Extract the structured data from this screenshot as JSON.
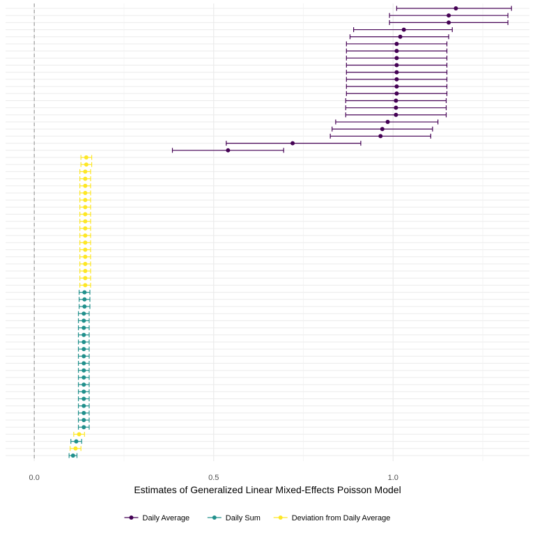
{
  "chart_data": {
    "type": "scatter",
    "subtype": "forest plot with horizontal error bars",
    "title": "",
    "xlabel": "Estimates of Generalized Linear Mixed-Effects Poisson Model",
    "ylabel": "",
    "xlim": [
      -0.08,
      1.38
    ],
    "x_ticks": [
      0.0,
      0.5,
      1.0
    ],
    "x_tick_labels": [
      "0.0",
      "0.5",
      "1.0"
    ],
    "reference_line_x": 0,
    "grid": true,
    "legend_position": "bottom",
    "colors": {
      "Daily Average": "#440154",
      "Daily Sum": "#21908C",
      "Deviation from Daily Average": "#FDE725"
    },
    "legend": [
      "Daily Average",
      "Daily Sum",
      "Deviation from Daily Average"
    ],
    "points": [
      {
        "series": "Daily Average",
        "estimate": 1.175,
        "lower": 1.01,
        "upper": 1.33
      },
      {
        "series": "Daily Average",
        "estimate": 1.155,
        "lower": 0.99,
        "upper": 1.32
      },
      {
        "series": "Daily Average",
        "estimate": 1.155,
        "lower": 0.99,
        "upper": 1.32
      },
      {
        "series": "Daily Average",
        "estimate": 1.03,
        "lower": 0.89,
        "upper": 1.165
      },
      {
        "series": "Daily Average",
        "estimate": 1.02,
        "lower": 0.88,
        "upper": 1.155
      },
      {
        "series": "Daily Average",
        "estimate": 1.01,
        "lower": 0.87,
        "upper": 1.15
      },
      {
        "series": "Daily Average",
        "estimate": 1.01,
        "lower": 0.87,
        "upper": 1.15
      },
      {
        "series": "Daily Average",
        "estimate": 1.01,
        "lower": 0.87,
        "upper": 1.15
      },
      {
        "series": "Daily Average",
        "estimate": 1.01,
        "lower": 0.87,
        "upper": 1.15
      },
      {
        "series": "Daily Average",
        "estimate": 1.01,
        "lower": 0.87,
        "upper": 1.15
      },
      {
        "series": "Daily Average",
        "estimate": 1.01,
        "lower": 0.87,
        "upper": 1.15
      },
      {
        "series": "Daily Average",
        "estimate": 1.01,
        "lower": 0.87,
        "upper": 1.15
      },
      {
        "series": "Daily Average",
        "estimate": 1.01,
        "lower": 0.87,
        "upper": 1.15
      },
      {
        "series": "Daily Average",
        "estimate": 1.008,
        "lower": 0.868,
        "upper": 1.148
      },
      {
        "series": "Daily Average",
        "estimate": 1.008,
        "lower": 0.868,
        "upper": 1.148
      },
      {
        "series": "Daily Average",
        "estimate": 1.008,
        "lower": 0.868,
        "upper": 1.148
      },
      {
        "series": "Daily Average",
        "estimate": 0.985,
        "lower": 0.84,
        "upper": 1.125
      },
      {
        "series": "Daily Average",
        "estimate": 0.97,
        "lower": 0.83,
        "upper": 1.11
      },
      {
        "series": "Daily Average",
        "estimate": 0.965,
        "lower": 0.825,
        "upper": 1.105
      },
      {
        "series": "Daily Average",
        "estimate": 0.72,
        "lower": 0.535,
        "upper": 0.91
      },
      {
        "series": "Daily Average",
        "estimate": 0.54,
        "lower": 0.385,
        "upper": 0.695
      },
      {
        "series": "Deviation from Daily Average",
        "estimate": 0.145,
        "lower": 0.13,
        "upper": 0.16
      },
      {
        "series": "Deviation from Daily Average",
        "estimate": 0.145,
        "lower": 0.13,
        "upper": 0.16
      },
      {
        "series": "Deviation from Daily Average",
        "estimate": 0.142,
        "lower": 0.127,
        "upper": 0.157
      },
      {
        "series": "Deviation from Daily Average",
        "estimate": 0.142,
        "lower": 0.127,
        "upper": 0.157
      },
      {
        "series": "Deviation from Daily Average",
        "estimate": 0.142,
        "lower": 0.127,
        "upper": 0.157
      },
      {
        "series": "Deviation from Daily Average",
        "estimate": 0.142,
        "lower": 0.127,
        "upper": 0.157
      },
      {
        "series": "Deviation from Daily Average",
        "estimate": 0.142,
        "lower": 0.127,
        "upper": 0.157
      },
      {
        "series": "Deviation from Daily Average",
        "estimate": 0.142,
        "lower": 0.127,
        "upper": 0.157
      },
      {
        "series": "Deviation from Daily Average",
        "estimate": 0.142,
        "lower": 0.127,
        "upper": 0.157
      },
      {
        "series": "Deviation from Daily Average",
        "estimate": 0.142,
        "lower": 0.127,
        "upper": 0.157
      },
      {
        "series": "Deviation from Daily Average",
        "estimate": 0.142,
        "lower": 0.127,
        "upper": 0.157
      },
      {
        "series": "Deviation from Daily Average",
        "estimate": 0.142,
        "lower": 0.127,
        "upper": 0.157
      },
      {
        "series": "Deviation from Daily Average",
        "estimate": 0.142,
        "lower": 0.127,
        "upper": 0.157
      },
      {
        "series": "Deviation from Daily Average",
        "estimate": 0.142,
        "lower": 0.127,
        "upper": 0.157
      },
      {
        "series": "Deviation from Daily Average",
        "estimate": 0.142,
        "lower": 0.127,
        "upper": 0.157
      },
      {
        "series": "Deviation from Daily Average",
        "estimate": 0.142,
        "lower": 0.127,
        "upper": 0.157
      },
      {
        "series": "Deviation from Daily Average",
        "estimate": 0.142,
        "lower": 0.127,
        "upper": 0.157
      },
      {
        "series": "Deviation from Daily Average",
        "estimate": 0.142,
        "lower": 0.127,
        "upper": 0.157
      },
      {
        "series": "Deviation from Daily Average",
        "estimate": 0.142,
        "lower": 0.127,
        "upper": 0.157
      },
      {
        "series": "Daily Sum",
        "estimate": 0.14,
        "lower": 0.125,
        "upper": 0.155
      },
      {
        "series": "Daily Sum",
        "estimate": 0.14,
        "lower": 0.125,
        "upper": 0.155
      },
      {
        "series": "Daily Sum",
        "estimate": 0.14,
        "lower": 0.125,
        "upper": 0.155
      },
      {
        "series": "Daily Sum",
        "estimate": 0.138,
        "lower": 0.123,
        "upper": 0.153
      },
      {
        "series": "Daily Sum",
        "estimate": 0.138,
        "lower": 0.123,
        "upper": 0.153
      },
      {
        "series": "Daily Sum",
        "estimate": 0.138,
        "lower": 0.123,
        "upper": 0.153
      },
      {
        "series": "Daily Sum",
        "estimate": 0.138,
        "lower": 0.123,
        "upper": 0.153
      },
      {
        "series": "Daily Sum",
        "estimate": 0.138,
        "lower": 0.123,
        "upper": 0.153
      },
      {
        "series": "Daily Sum",
        "estimate": 0.138,
        "lower": 0.123,
        "upper": 0.153
      },
      {
        "series": "Daily Sum",
        "estimate": 0.138,
        "lower": 0.123,
        "upper": 0.153
      },
      {
        "series": "Daily Sum",
        "estimate": 0.138,
        "lower": 0.123,
        "upper": 0.153
      },
      {
        "series": "Daily Sum",
        "estimate": 0.138,
        "lower": 0.123,
        "upper": 0.153
      },
      {
        "series": "Daily Sum",
        "estimate": 0.138,
        "lower": 0.123,
        "upper": 0.153
      },
      {
        "series": "Daily Sum",
        "estimate": 0.138,
        "lower": 0.123,
        "upper": 0.153
      },
      {
        "series": "Daily Sum",
        "estimate": 0.138,
        "lower": 0.123,
        "upper": 0.153
      },
      {
        "series": "Daily Sum",
        "estimate": 0.138,
        "lower": 0.123,
        "upper": 0.153
      },
      {
        "series": "Daily Sum",
        "estimate": 0.138,
        "lower": 0.123,
        "upper": 0.153
      },
      {
        "series": "Daily Sum",
        "estimate": 0.138,
        "lower": 0.123,
        "upper": 0.153
      },
      {
        "series": "Daily Sum",
        "estimate": 0.138,
        "lower": 0.123,
        "upper": 0.153
      },
      {
        "series": "Daily Sum",
        "estimate": 0.138,
        "lower": 0.123,
        "upper": 0.153
      },
      {
        "series": "Deviation from Daily Average",
        "estimate": 0.125,
        "lower": 0.11,
        "upper": 0.14
      },
      {
        "series": "Daily Sum",
        "estimate": 0.117,
        "lower": 0.102,
        "upper": 0.132
      },
      {
        "series": "Deviation from Daily Average",
        "estimate": 0.115,
        "lower": 0.1,
        "upper": 0.13
      },
      {
        "series": "Daily Sum",
        "estimate": 0.108,
        "lower": 0.097,
        "upper": 0.119
      }
    ]
  }
}
